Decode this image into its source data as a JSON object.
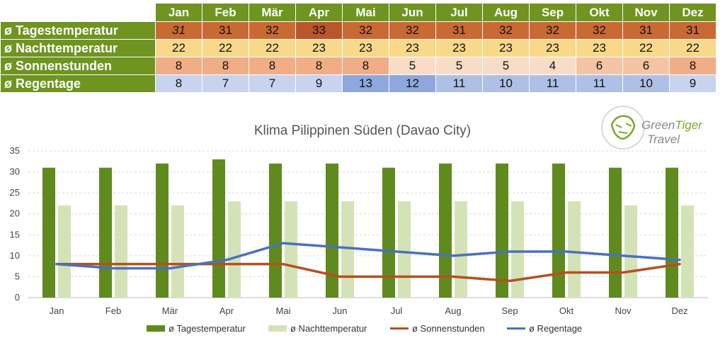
{
  "table": {
    "months": [
      "Jan",
      "Feb",
      "Mär",
      "Apr",
      "Mai",
      "Jun",
      "Jul",
      "Aug",
      "Sep",
      "Okt",
      "Nov",
      "Dez"
    ],
    "rows": [
      {
        "label": "ø Tagestemperatur",
        "values": [
          "31",
          "31",
          "32",
          "33",
          "32",
          "32",
          "31",
          "32",
          "32",
          "32",
          "31",
          "31"
        ]
      },
      {
        "label": "ø Nachttemperatur",
        "values": [
          "22",
          "22",
          "22",
          "23",
          "23",
          "23",
          "23",
          "23",
          "23",
          "23",
          "22",
          "22"
        ]
      },
      {
        "label": "ø Sonnenstunden",
        "values": [
          "8",
          "8",
          "8",
          "8",
          "8",
          "5",
          "5",
          "5",
          "4",
          "6",
          "6",
          "8"
        ]
      },
      {
        "label": "ø Regentage",
        "values": [
          "8",
          "7",
          "7",
          "9",
          "13",
          "12",
          "11",
          "10",
          "11",
          "11",
          "10",
          "9"
        ]
      }
    ]
  },
  "logo": {
    "word1": "Green",
    "word2": "Tiger",
    "word3": "Travel"
  },
  "chart_data": {
    "type": "bar",
    "title": "Klima Pilippinen Süden (Davao City)",
    "categories": [
      "Jan",
      "Feb",
      "Mär",
      "Apr",
      "Mai",
      "Jun",
      "Jul",
      "Aug",
      "Sep",
      "Okt",
      "Nov",
      "Dez"
    ],
    "ylim": [
      0,
      35
    ],
    "yticks": [
      0,
      5,
      10,
      15,
      20,
      25,
      30,
      35
    ],
    "grid": true,
    "legend_position": "bottom",
    "series": [
      {
        "name": "ø Tagestemperatur",
        "kind": "bar",
        "color": "#5f8a1e",
        "values": [
          31,
          31,
          32,
          33,
          32,
          32,
          31,
          32,
          32,
          32,
          31,
          31
        ]
      },
      {
        "name": "ø Nachttemperatur",
        "kind": "bar",
        "color": "#d3e3b7",
        "values": [
          22,
          22,
          22,
          23,
          23,
          23,
          23,
          23,
          23,
          23,
          22,
          22
        ]
      },
      {
        "name": "ø Sonnenstunden",
        "kind": "line",
        "color": "#b5501f",
        "values": [
          8,
          8,
          8,
          8,
          8,
          5,
          5,
          5,
          4,
          6,
          6,
          8
        ]
      },
      {
        "name": "ø Regentage",
        "kind": "line",
        "color": "#4a72b8",
        "values": [
          8,
          7,
          7,
          9,
          13,
          12,
          11,
          10,
          11,
          11,
          10,
          9
        ]
      }
    ]
  }
}
